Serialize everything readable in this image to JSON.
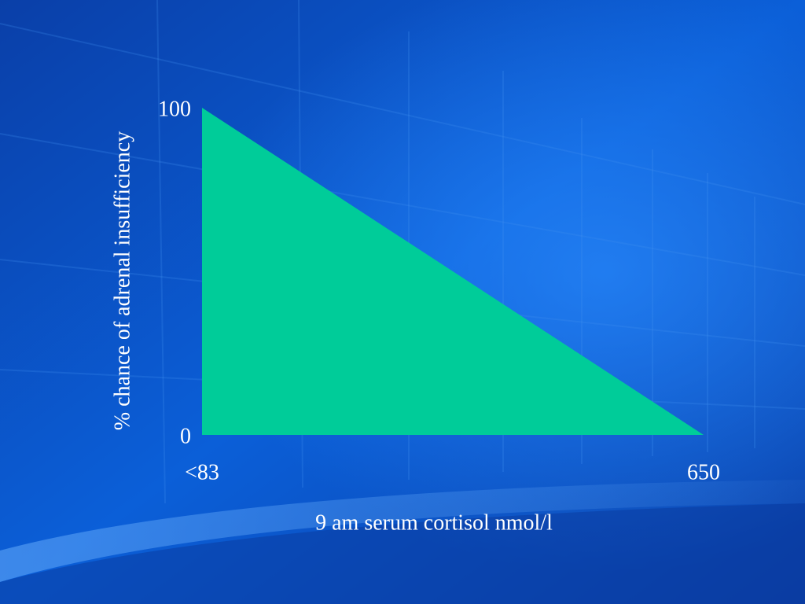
{
  "chart_data": {
    "type": "area",
    "y_label": "% chance of adrenal insufficiency",
    "x_label": "9 am serum cortisol nmol/l",
    "categories": [
      "<83",
      "650"
    ],
    "values": [
      100,
      0
    ],
    "color": "#00cc99",
    "ylim": [
      0,
      100
    ],
    "yticks": [
      0,
      100
    ],
    "grid": false
  }
}
